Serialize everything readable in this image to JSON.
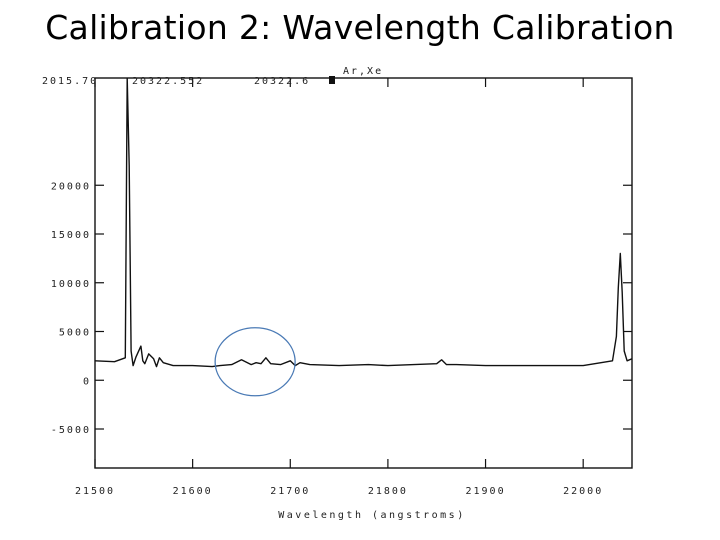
{
  "slide": {
    "title": "Calibration 2: Wavelength Calibration"
  },
  "header": {
    "cursor_x": "2015.70",
    "cursor_wavelength": "20322.552",
    "cursor_value": "20322.6",
    "spectrum_label": "Ar,Xe"
  },
  "chart_data": {
    "type": "line",
    "title": "",
    "xlabel": "Wavelength (angstroms)",
    "ylabel": "",
    "xlim": [
      21500,
      22050
    ],
    "ylim": [
      -9000,
      31000
    ],
    "xticks": [
      21500,
      21600,
      21700,
      21800,
      21900,
      22000
    ],
    "xtick_labels": [
      "21500",
      "21600",
      "21700",
      "21800",
      "21900",
      "22000"
    ],
    "yticks": [
      20000,
      15000,
      10000,
      5000,
      0,
      -5000
    ],
    "ytick_labels": [
      "20000",
      "15000",
      "10000",
      "5000",
      "0",
      "-5000"
    ],
    "grid": false,
    "series": [
      {
        "name": "",
        "x": [
          21500,
          21520,
          21531,
          21533,
          21535,
          21537,
          21539,
          21542,
          21547,
          21549,
          21551,
          21555,
          21560,
          21563,
          21566,
          21570,
          21580,
          21600,
          21620,
          21628,
          21640,
          21650,
          21660,
          21665,
          21670,
          21675,
          21680,
          21690,
          21700,
          21705,
          21710,
          21720,
          21750,
          21780,
          21800,
          21850,
          21855,
          21860,
          21870,
          21900,
          21950,
          22000,
          22030,
          22034,
          22036,
          22038,
          22040,
          22042,
          22045,
          22050
        ],
        "y": [
          2000,
          1900,
          2300,
          31000,
          22000,
          3000,
          1500,
          2400,
          3500,
          2000,
          1700,
          2700,
          2200,
          1400,
          2300,
          1800,
          1500,
          1500,
          1400,
          1500,
          1600,
          2100,
          1600,
          1800,
          1700,
          2300,
          1700,
          1600,
          2000,
          1500,
          1800,
          1600,
          1500,
          1600,
          1500,
          1700,
          2100,
          1600,
          1600,
          1500,
          1500,
          1500,
          2000,
          4500,
          9500,
          13000,
          9000,
          3000,
          2000,
          2200
        ]
      }
    ],
    "annotations": [
      {
        "type": "circle",
        "x": 21664,
        "y": 2100,
        "text": ""
      }
    ]
  }
}
